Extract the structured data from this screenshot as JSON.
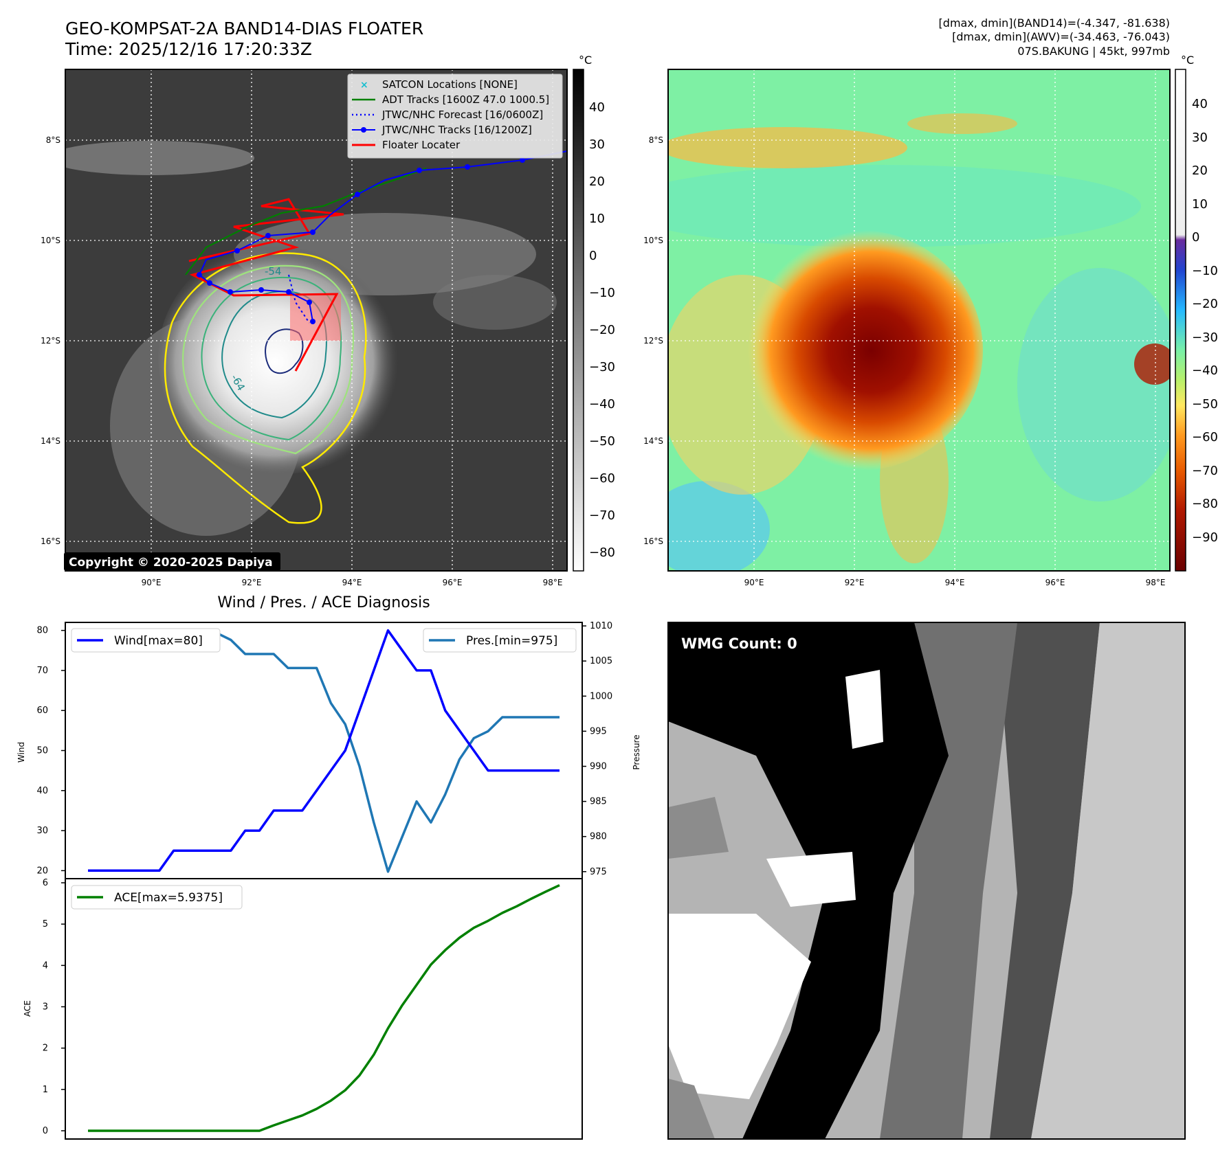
{
  "header": {
    "title_line1": "GEO-KOMPSAT-2A BAND14-DIAS FLOATER",
    "title_line2": "Time: 2025/12/16 17:20:33Z",
    "info_line1": "[dmax, dmin](BAND14)=(-4.347, -81.638)",
    "info_line2": "[dmax, dmin](AWV)=(-34.463, -76.043)",
    "info_line3": "07S.BAKUNG | 45kt, 997mb"
  },
  "map": {
    "lat_ticks": [
      "8°S",
      "10°S",
      "12°S",
      "14°S",
      "16°S"
    ],
    "lon_ticks": [
      "90°E",
      "92°E",
      "94°E",
      "96°E",
      "98°E"
    ],
    "colorbar_unit": "°C",
    "left_colorbar_ticks": [
      "40",
      "30",
      "20",
      "10",
      "0",
      "−10",
      "−20",
      "−30",
      "−40",
      "−50",
      "−60",
      "−70",
      "−80"
    ],
    "right_colorbar_ticks": [
      "40",
      "30",
      "20",
      "10",
      "0",
      "−10",
      "−20",
      "−30",
      "−40",
      "−50",
      "−60",
      "−70",
      "−80",
      "−90"
    ],
    "copyright": "Copyright © 2020-2025 Dapiya",
    "contour_labels": [
      "-54",
      "-64"
    ],
    "legend": [
      {
        "label": "SATCON Locations [NONE]",
        "color": "#17becf",
        "style": "x"
      },
      {
        "label": "ADT Tracks [1600Z 47.0 1000.5]",
        "color": "#008000",
        "style": "line"
      },
      {
        "label": "JTWC/NHC Forecast [16/0600Z]",
        "color": "#0000ff",
        "style": "dotted"
      },
      {
        "label": "JTWC/NHC Tracks [16/1200Z]",
        "color": "#0000ff",
        "style": "line-dot"
      },
      {
        "label": "Floater Locater",
        "color": "#ff0000",
        "style": "line"
      }
    ]
  },
  "diagnosis": {
    "title": "Wind / Pres. / ACE Diagnosis",
    "wind_label": "Wind",
    "pres_label": "Pressure",
    "ace_label": "ACE",
    "legend_wind": "Wind[max=80]",
    "legend_pres": "Pres.[min=975]",
    "legend_ace": "ACE[max=5.9375]",
    "wind_ticks": [
      "80",
      "70",
      "60",
      "50",
      "40",
      "30",
      "20"
    ],
    "pres_ticks": [
      "1010",
      "1005",
      "1000",
      "995",
      "990",
      "985",
      "980",
      "975"
    ],
    "ace_ticks": [
      "6",
      "5",
      "4",
      "3",
      "2",
      "1",
      "0"
    ]
  },
  "wmg": {
    "label": "WMG Count: 0"
  },
  "chart_data": [
    {
      "type": "line",
      "title": "Wind / Pres. / ACE Diagnosis",
      "x": [
        0,
        1,
        2,
        3,
        4,
        5,
        6,
        7,
        8,
        9,
        10,
        11,
        12,
        13,
        14,
        15,
        16,
        17,
        18,
        19,
        20,
        21,
        22,
        23,
        24,
        25,
        26,
        27,
        28,
        29,
        30,
        31,
        32,
        33
      ],
      "series": [
        {
          "name": "Wind[max=80]",
          "axis": "Wind",
          "color": "#0000ff",
          "values": [
            20,
            20,
            20,
            20,
            20,
            20,
            25,
            25,
            25,
            25,
            25,
            30,
            30,
            35,
            35,
            35,
            40,
            45,
            50,
            60,
            70,
            80,
            75,
            70,
            70,
            60,
            55,
            50,
            45,
            45,
            45,
            45,
            45,
            45
          ]
        },
        {
          "name": "Pres.[min=975]",
          "axis": "Pressure",
          "color": "#1f77b4",
          "values": [
            1008,
            1008,
            1008,
            1008,
            1008,
            1008,
            1007,
            1007,
            1007,
            1009,
            1008,
            1006,
            1006,
            1006,
            1004,
            1004,
            1004,
            999,
            996,
            990,
            982,
            975,
            980,
            985,
            982,
            986,
            991,
            994,
            995,
            997,
            997,
            997,
            997,
            997
          ]
        }
      ],
      "ylim_wind": [
        18,
        82
      ],
      "ylim_pres": [
        974,
        1010.5
      ]
    },
    {
      "type": "line",
      "x": [
        0,
        1,
        2,
        3,
        4,
        5,
        6,
        7,
        8,
        9,
        10,
        11,
        12,
        13,
        14,
        15,
        16,
        17,
        18,
        19,
        20,
        21,
        22,
        23,
        24,
        25,
        26,
        27,
        28,
        29,
        30,
        31,
        32,
        33
      ],
      "series": [
        {
          "name": "ACE[max=5.9375]",
          "axis": "ACE",
          "color": "#008000",
          "values": [
            0,
            0,
            0,
            0,
            0,
            0,
            0,
            0,
            0,
            0,
            0,
            0,
            0,
            0.13,
            0.25,
            0.37,
            0.53,
            0.73,
            0.98,
            1.34,
            1.84,
            2.48,
            3.04,
            3.53,
            4.02,
            4.37,
            4.67,
            4.91,
            5.08,
            5.27,
            5.43,
            5.61,
            5.78,
            5.94
          ]
        }
      ],
      "ylim": [
        -0.2,
        6.1
      ]
    }
  ]
}
